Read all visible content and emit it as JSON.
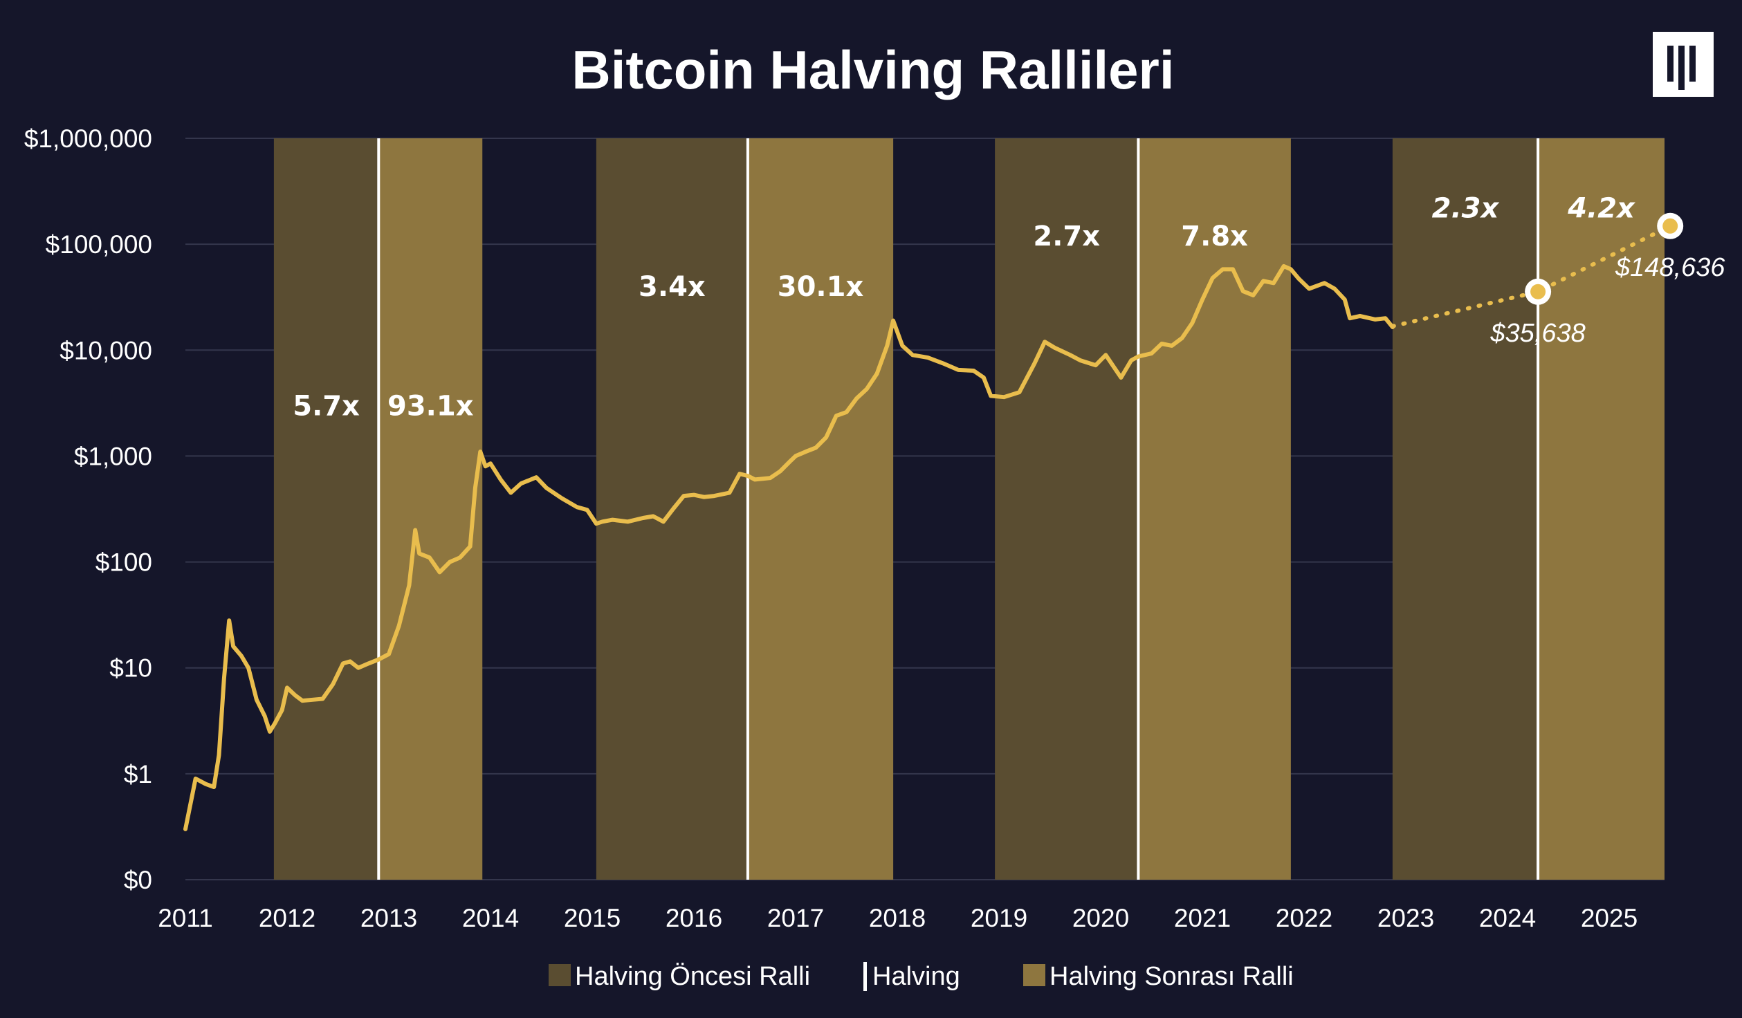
{
  "brand": {
    "logo_glyph": "Ⅲ",
    "logo_bg": "#ffffff",
    "logo_fg": "#15162a"
  },
  "colors": {
    "background": "#15162a",
    "pre_halving": "#5a4d31",
    "post_halving": "#8e763f",
    "price_line": "#e9bd4d",
    "halving_line": "#ffffff",
    "grid": "#34364c"
  },
  "chart_data": {
    "type": "line",
    "title": "Bitcoin Halving Rallileri",
    "y_scale": "log",
    "ylim": [
      0.1,
      1000000
    ],
    "xlim": [
      2011.0,
      2025.8
    ],
    "x_ticks": [
      "2011",
      "2012",
      "2013",
      "2014",
      "2015",
      "2016",
      "2017",
      "2018",
      "2019",
      "2020",
      "2021",
      "2022",
      "2023",
      "2024",
      "2025"
    ],
    "y_ticks": [
      {
        "value": 0.1,
        "label": "$0"
      },
      {
        "value": 1,
        "label": "$1"
      },
      {
        "value": 10,
        "label": "$10"
      },
      {
        "value": 100,
        "label": "$100"
      },
      {
        "value": 1000,
        "label": "$1,000"
      },
      {
        "value": 10000,
        "label": "$10,000"
      },
      {
        "value": 100000,
        "label": "$100,000"
      },
      {
        "value": 1000000,
        "label": "$1,000,000"
      }
    ],
    "grid": "horizontal",
    "legend_position": "bottom-center",
    "halvings": [
      2012.9,
      2016.53,
      2020.37,
      2024.3
    ],
    "bands": [
      {
        "type": "pre",
        "start": 2011.87,
        "end": 2012.9,
        "multiplier": "5.7x",
        "label_y": 3000,
        "projected": false
      },
      {
        "type": "post",
        "start": 2012.9,
        "end": 2013.92,
        "multiplier": "93.1x",
        "label_y": 3000,
        "projected": false
      },
      {
        "type": "pre",
        "start": 2015.04,
        "end": 2016.53,
        "multiplier": "3.4x",
        "label_y": 40000,
        "projected": false
      },
      {
        "type": "post",
        "start": 2016.53,
        "end": 2017.96,
        "multiplier": "30.1x",
        "label_y": 40000,
        "projected": false
      },
      {
        "type": "pre",
        "start": 2018.96,
        "end": 2020.37,
        "multiplier": "2.7x",
        "label_y": 120000,
        "projected": false
      },
      {
        "type": "post",
        "start": 2020.37,
        "end": 2021.87,
        "multiplier": "7.8x",
        "label_y": 120000,
        "projected": false
      },
      {
        "type": "pre",
        "start": 2022.87,
        "end": 2024.3,
        "multiplier": "2.3x",
        "label_y": 220000,
        "projected": true
      },
      {
        "type": "post",
        "start": 2024.3,
        "end": 2025.6,
        "multiplier": "4.2x",
        "label_y": 220000,
        "projected": true
      }
    ],
    "series": [
      {
        "values": [
          [
            2011.0,
            0.3
          ],
          [
            2011.1,
            0.9
          ],
          [
            2011.2,
            0.8
          ],
          [
            2011.28,
            0.75
          ],
          [
            2011.33,
            1.5
          ],
          [
            2011.38,
            8
          ],
          [
            2011.43,
            28
          ],
          [
            2011.47,
            16
          ],
          [
            2011.55,
            13
          ],
          [
            2011.62,
            10
          ],
          [
            2011.7,
            5
          ],
          [
            2011.78,
            3.5
          ],
          [
            2011.83,
            2.5
          ],
          [
            2011.88,
            3
          ],
          [
            2011.95,
            4
          ],
          [
            2012.0,
            6.5
          ],
          [
            2012.08,
            5.5
          ],
          [
            2012.15,
            4.9
          ],
          [
            2012.25,
            5
          ],
          [
            2012.35,
            5.1
          ],
          [
            2012.45,
            7
          ],
          [
            2012.55,
            11
          ],
          [
            2012.62,
            11.5
          ],
          [
            2012.7,
            10
          ],
          [
            2012.8,
            11
          ],
          [
            2012.9,
            12
          ],
          [
            2013.0,
            13.5
          ],
          [
            2013.1,
            25
          ],
          [
            2013.2,
            60
          ],
          [
            2013.26,
            200
          ],
          [
            2013.3,
            120
          ],
          [
            2013.4,
            110
          ],
          [
            2013.5,
            80
          ],
          [
            2013.6,
            100
          ],
          [
            2013.7,
            110
          ],
          [
            2013.8,
            140
          ],
          [
            2013.85,
            500
          ],
          [
            2013.9,
            1100
          ],
          [
            2013.95,
            800
          ],
          [
            2014.0,
            850
          ],
          [
            2014.1,
            600
          ],
          [
            2014.2,
            450
          ],
          [
            2014.3,
            550
          ],
          [
            2014.45,
            630
          ],
          [
            2014.55,
            500
          ],
          [
            2014.7,
            400
          ],
          [
            2014.85,
            330
          ],
          [
            2014.95,
            310
          ],
          [
            2015.04,
            230
          ],
          [
            2015.1,
            240
          ],
          [
            2015.2,
            250
          ],
          [
            2015.35,
            240
          ],
          [
            2015.5,
            260
          ],
          [
            2015.6,
            270
          ],
          [
            2015.7,
            240
          ],
          [
            2015.8,
            320
          ],
          [
            2015.9,
            420
          ],
          [
            2016.0,
            430
          ],
          [
            2016.1,
            410
          ],
          [
            2016.2,
            420
          ],
          [
            2016.35,
            450
          ],
          [
            2016.45,
            680
          ],
          [
            2016.53,
            650
          ],
          [
            2016.6,
            600
          ],
          [
            2016.75,
            620
          ],
          [
            2016.85,
            720
          ],
          [
            2016.95,
            900
          ],
          [
            2017.0,
            1000
          ],
          [
            2017.1,
            1100
          ],
          [
            2017.2,
            1200
          ],
          [
            2017.3,
            1500
          ],
          [
            2017.4,
            2400
          ],
          [
            2017.5,
            2600
          ],
          [
            2017.6,
            3500
          ],
          [
            2017.7,
            4300
          ],
          [
            2017.8,
            6000
          ],
          [
            2017.9,
            11000
          ],
          [
            2017.96,
            19000
          ],
          [
            2018.05,
            11000
          ],
          [
            2018.15,
            9000
          ],
          [
            2018.3,
            8500
          ],
          [
            2018.45,
            7500
          ],
          [
            2018.6,
            6500
          ],
          [
            2018.75,
            6400
          ],
          [
            2018.85,
            5500
          ],
          [
            2018.92,
            3700
          ],
          [
            2019.05,
            3600
          ],
          [
            2019.2,
            4000
          ],
          [
            2019.35,
            7500
          ],
          [
            2019.45,
            12000
          ],
          [
            2019.55,
            10500
          ],
          [
            2019.7,
            9000
          ],
          [
            2019.8,
            8000
          ],
          [
            2019.95,
            7200
          ],
          [
            2020.05,
            9000
          ],
          [
            2020.2,
            5500
          ],
          [
            2020.3,
            8000
          ],
          [
            2020.37,
            8700
          ],
          [
            2020.5,
            9300
          ],
          [
            2020.6,
            11500
          ],
          [
            2020.7,
            11000
          ],
          [
            2020.8,
            13000
          ],
          [
            2020.9,
            18000
          ],
          [
            2021.0,
            30000
          ],
          [
            2021.1,
            48000
          ],
          [
            2021.2,
            58000
          ],
          [
            2021.3,
            58000
          ],
          [
            2021.4,
            36000
          ],
          [
            2021.5,
            33000
          ],
          [
            2021.6,
            45000
          ],
          [
            2021.7,
            43000
          ],
          [
            2021.8,
            62000
          ],
          [
            2021.87,
            58000
          ],
          [
            2021.95,
            47000
          ],
          [
            2022.05,
            38000
          ],
          [
            2022.2,
            43000
          ],
          [
            2022.3,
            38000
          ],
          [
            2022.4,
            30000
          ],
          [
            2022.45,
            20000
          ],
          [
            2022.55,
            21000
          ],
          [
            2022.7,
            19500
          ],
          [
            2022.8,
            20000
          ],
          [
            2022.87,
            16500
          ]
        ]
      }
    ],
    "projection": {
      "points": [
        [
          2022.87,
          16800
        ],
        [
          2024.3,
          35638
        ],
        [
          2025.6,
          148636
        ]
      ],
      "labels": [
        "$35,638",
        "$148,636"
      ]
    },
    "legend": [
      {
        "key": "pre",
        "label": "Halving Öncesi Ralli"
      },
      {
        "key": "halving",
        "label": "Halving"
      },
      {
        "key": "post",
        "label": "Halving Sonrası Ralli"
      }
    ]
  }
}
